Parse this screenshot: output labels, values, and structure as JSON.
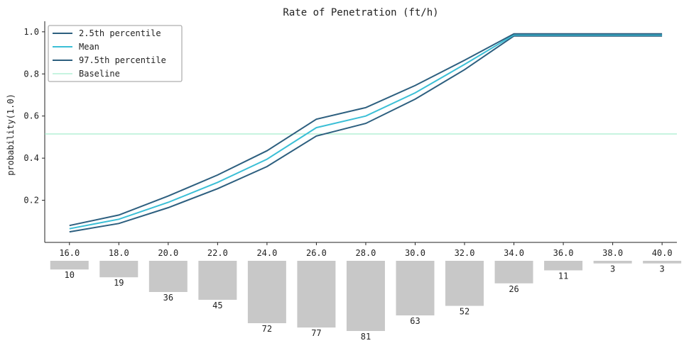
{
  "chart_data": {
    "type": "line",
    "title": "Rate of Penetration (ft/h)",
    "xlabel": "",
    "ylabel": "probability(1.0)",
    "x": [
      16.0,
      18.0,
      20.0,
      22.0,
      24.0,
      26.0,
      28.0,
      30.0,
      32.0,
      34.0,
      36.0,
      38.0,
      40.0
    ],
    "x_tick_labels": [
      "16.0",
      "18.0",
      "20.0",
      "22.0",
      "24.0",
      "26.0",
      "28.0",
      "30.0",
      "32.0",
      "34.0",
      "36.0",
      "38.0",
      "40.0"
    ],
    "y_ticks": [
      0.2,
      0.4,
      0.6,
      0.8,
      1.0
    ],
    "y_tick_labels": [
      "0.2",
      "0.4",
      "0.6",
      "0.8",
      "1.0"
    ],
    "ylim": [
      0.0,
      1.05
    ],
    "xlim": [
      15.0,
      40.6
    ],
    "series": [
      {
        "name": "2.5th percentile",
        "color": "#2d5f7f",
        "values": [
          0.05,
          0.09,
          0.165,
          0.255,
          0.36,
          0.505,
          0.565,
          0.68,
          0.82,
          0.98,
          0.98,
          0.98,
          0.98
        ]
      },
      {
        "name": "Mean",
        "color": "#3bbfd6",
        "values": [
          0.065,
          0.11,
          0.19,
          0.285,
          0.395,
          0.545,
          0.6,
          0.71,
          0.845,
          0.985,
          0.985,
          0.985,
          0.985
        ]
      },
      {
        "name": "97.5th percentile",
        "color": "#2d5f7f",
        "values": [
          0.08,
          0.13,
          0.22,
          0.32,
          0.435,
          0.585,
          0.64,
          0.745,
          0.865,
          0.99,
          0.99,
          0.99,
          0.99
        ]
      }
    ],
    "baseline": {
      "name": "Baseline",
      "color": "#8fe8c0",
      "value": 0.515
    },
    "counts": [
      10,
      19,
      36,
      45,
      72,
      77,
      81,
      63,
      52,
      26,
      11,
      3,
      3
    ],
    "count_color": "#c8c8c8",
    "legend_position": "top-left",
    "grid": false
  }
}
